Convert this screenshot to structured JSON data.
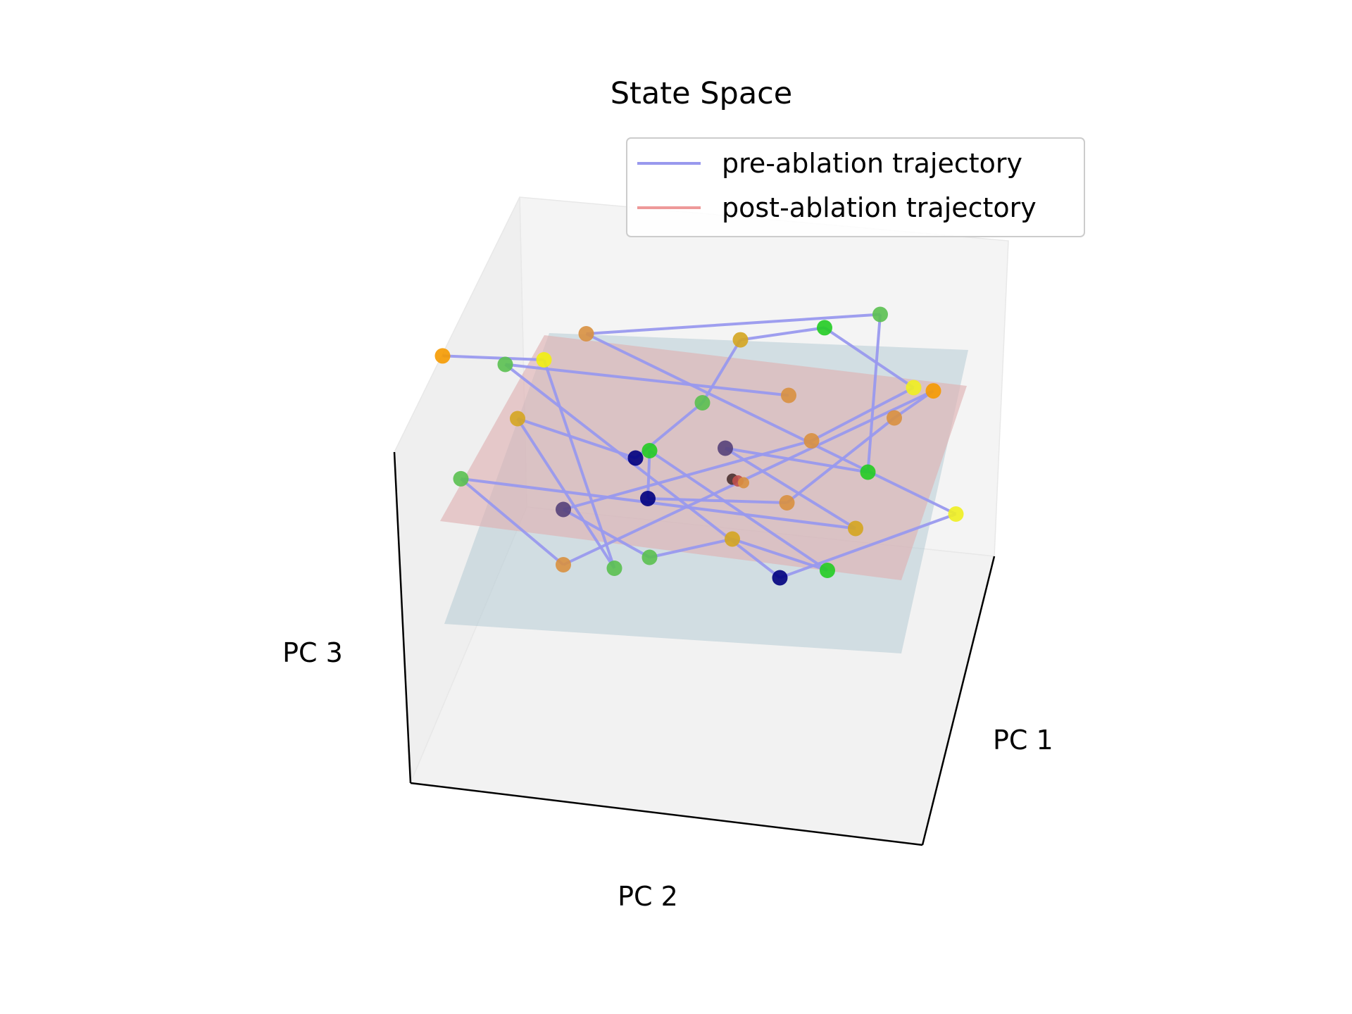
{
  "chart_data": {
    "type": "scatter",
    "projection": "3d",
    "title": "State Space",
    "xlabel": "PC 1",
    "ylabel": "PC 2",
    "zlabel": "PC 3",
    "grid": false,
    "legend_position": "top-right",
    "legend": [
      {
        "label": "pre-ablation trajectory",
        "color": "#9999ee"
      },
      {
        "label": "post-ablation trajectory",
        "color": "#ee9999"
      }
    ],
    "planes": [
      {
        "name": "pre-ablation fit plane",
        "color": "#b0c8d2"
      },
      {
        "name": "post-ablation fit plane",
        "color": "#dfb2b4"
      }
    ],
    "series": [
      {
        "name": "pre-ablation trajectory",
        "color": "#9999ee",
        "points": [
          {
            "x": -0.95,
            "y": 0.78,
            "z": 0.55,
            "color": "#f59a00"
          },
          {
            "x": -0.55,
            "y": 0.7,
            "z": 0.55,
            "color": "#f2ef10"
          },
          {
            "x": -0.45,
            "y": -0.6,
            "z": 0.45,
            "color": "#5ac050"
          },
          {
            "x": -0.7,
            "y": 0.4,
            "z": 0.45,
            "color": "#d4a520"
          },
          {
            "x": -0.2,
            "y": 0.55,
            "z": -0.35,
            "color": "#000080"
          },
          {
            "x": 0.05,
            "y": 0.4,
            "z": 0.45,
            "color": "#5ac050"
          },
          {
            "x": 0.25,
            "y": 0.72,
            "z": 0.55,
            "color": "#d4a520"
          },
          {
            "x": 0.6,
            "y": 0.78,
            "z": 0.5,
            "color": "#22cc22"
          },
          {
            "x": 0.95,
            "y": 0.7,
            "z": -0.1,
            "color": "#f0ef20"
          },
          {
            "x": 0.45,
            "y": 0.1,
            "z": 0.45,
            "color": "#d89040"
          },
          {
            "x": -0.6,
            "y": -0.2,
            "z": 0.45,
            "color": "#55417a"
          },
          {
            "x": -0.3,
            "y": -0.55,
            "z": 0.45,
            "color": "#5ac050"
          },
          {
            "x": 0.05,
            "y": -0.45,
            "z": 0.4,
            "color": "#d4a520"
          },
          {
            "x": 0.4,
            "y": -0.7,
            "z": 0.4,
            "color": "#22cc22"
          },
          {
            "x": -0.1,
            "y": 0.85,
            "z": -0.8,
            "color": "#22cc22"
          },
          {
            "x": -0.2,
            "y": 0.2,
            "z": -0.2,
            "color": "#000080"
          },
          {
            "x": 0.3,
            "y": -0.25,
            "z": 0.4,
            "color": "#d89040"
          },
          {
            "x": 0.8,
            "y": 0.2,
            "z": 0.45,
            "color": "#d89040"
          },
          {
            "x": 0.98,
            "y": 0.35,
            "z": 0.45,
            "color": "#f59a00"
          },
          {
            "x": -0.65,
            "y": -0.55,
            "z": 0.45,
            "color": "#d89040"
          },
          {
            "x": -0.98,
            "y": 0.05,
            "z": 0.45,
            "color": "#5ac050"
          },
          {
            "x": 0.55,
            "y": -0.45,
            "z": 0.4,
            "color": "#d4a520"
          },
          {
            "x": 0.1,
            "y": 0.1,
            "z": 0.45,
            "color": "#55417a"
          },
          {
            "x": 0.65,
            "y": -0.1,
            "z": 0.4,
            "color": "#22cc22"
          },
          {
            "x": 0.85,
            "y": 0.95,
            "z": 0.3,
            "color": "#5ac050"
          },
          {
            "x": -0.35,
            "y": 0.9,
            "z": 0.45,
            "color": "#d89040"
          },
          {
            "x": 0.95,
            "y": -0.5,
            "z": 0.55,
            "color": "#f0ef20"
          },
          {
            "x": 0.2,
            "y": -0.75,
            "z": 0.45,
            "color": "#000080"
          },
          {
            "x": -0.7,
            "y": 0.75,
            "z": 0.45,
            "color": "#5ac050"
          },
          {
            "x": 0.4,
            "y": 0.4,
            "z": 0.45,
            "color": "#d89040"
          }
        ]
      },
      {
        "name": "post-ablation trajectory",
        "color": "#ee9999",
        "points": [
          {
            "x": 0.1,
            "y": -0.1,
            "z": 0.45,
            "color": "#4a3030"
          },
          {
            "x": 0.12,
            "y": -0.12,
            "z": 0.46,
            "color": "#c0504d"
          },
          {
            "x": 0.14,
            "y": -0.14,
            "z": 0.47,
            "color": "#d89040"
          }
        ]
      }
    ]
  }
}
